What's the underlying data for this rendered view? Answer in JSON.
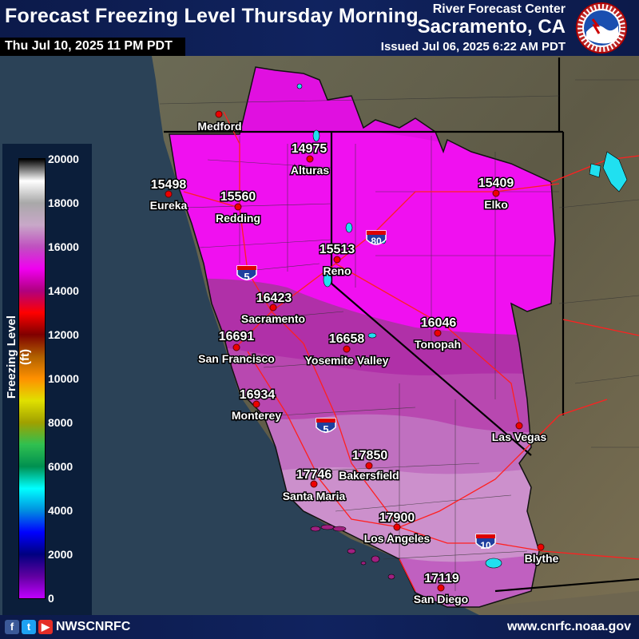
{
  "header": {
    "title": "Forecast Freezing Level Thursday Morning",
    "valid_time": "Thu Jul 10, 2025 11 PM PDT",
    "center_label": "River Forecast Center",
    "center_city": "Sacramento, CA",
    "issued": "Issued Jul 06, 2025 6:22 AM PDT",
    "logo_text": "NATIONAL WEATHER SERVICE"
  },
  "legend": {
    "title": "Freezing Level (ft)",
    "ticks": [
      "20000",
      "18000",
      "16000",
      "14000",
      "12000",
      "10000",
      "8000",
      "6000",
      "4000",
      "2000",
      "0"
    ],
    "colors": [
      "#000000",
      "#ffffff",
      "#a8a8a8",
      "#c8a8c8",
      "#c050c0",
      "#f000f0",
      "#b00080",
      "#ff0000",
      "#800000",
      "#b06000",
      "#ff9000",
      "#e0e000",
      "#a0a000",
      "#30c050",
      "#009050",
      "#00ffff",
      "#0090e0",
      "#0000ff",
      "#000080",
      "#6000a0",
      "#c000ff"
    ]
  },
  "stations": [
    {
      "name": "Medford",
      "value": ""
    },
    {
      "name": "Alturas",
      "value": "14975"
    },
    {
      "name": "Eureka",
      "value": "15498"
    },
    {
      "name": "Redding",
      "value": "15560"
    },
    {
      "name": "Elko",
      "value": "15409"
    },
    {
      "name": "Reno",
      "value": "15513"
    },
    {
      "name": "Sacramento",
      "value": "16423"
    },
    {
      "name": "Tonopah",
      "value": "16046"
    },
    {
      "name": "San Francisco",
      "value": "16691"
    },
    {
      "name": "Yosemite Valley",
      "value": "16658"
    },
    {
      "name": "Monterey",
      "value": "16934"
    },
    {
      "name": "Las Vegas",
      "value": ""
    },
    {
      "name": "Bakersfield",
      "value": "17850"
    },
    {
      "name": "Santa Maria",
      "value": "17746"
    },
    {
      "name": "Los Angeles",
      "value": "17900"
    },
    {
      "name": "Blythe",
      "value": ""
    },
    {
      "name": "San Diego",
      "value": "17119"
    }
  ],
  "highways": [
    "80",
    "5",
    "5",
    "10"
  ],
  "footer": {
    "social_icons": [
      "facebook-icon",
      "twitter-icon",
      "youtube-icon"
    ],
    "handle": "NWSCNRFC",
    "website": "www.cnrfc.noaa.gov"
  }
}
